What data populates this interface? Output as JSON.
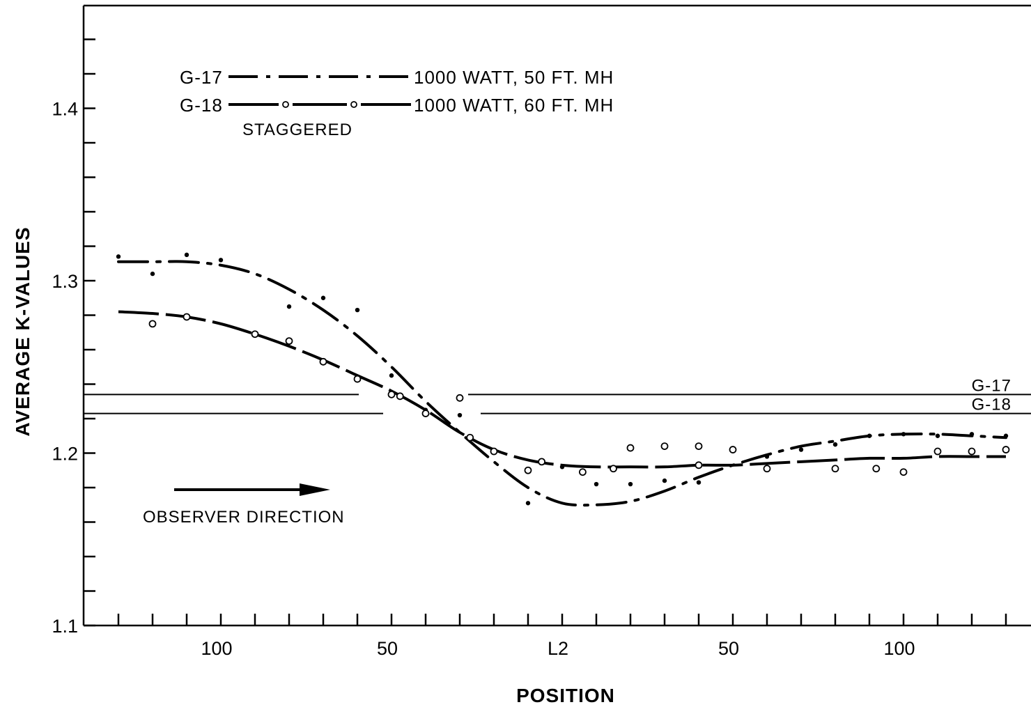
{
  "chart_data": {
    "type": "line",
    "xlabel": "POSITION",
    "ylabel": "AVERAGE  K-VALUES",
    "ylim": [
      1.1,
      1.45
    ],
    "y_ticks": [
      "1.1",
      "1.2",
      "1.3",
      "1.4"
    ],
    "x_tick_labels": [
      {
        "index": 3,
        "label": "100"
      },
      {
        "index": 8,
        "label": "50"
      },
      {
        "index": 13,
        "label": "L2"
      },
      {
        "index": 18,
        "label": "50"
      },
      {
        "index": 23,
        "label": "100"
      }
    ],
    "x_tick_count": 28,
    "grid": false,
    "legend": {
      "entries": [
        {
          "name": "G-17",
          "description": "1000  WATT,  50  FT.  MH"
        },
        {
          "name": "G-18",
          "description": "1000  WATT,  60  FT.  MH"
        }
      ],
      "note": "STAGGERED"
    },
    "annotations": {
      "observer": "OBSERVER  DIRECTION"
    },
    "reference_lines": [
      {
        "name": "G-17",
        "value": 1.234
      },
      {
        "name": "G-18",
        "value": 1.223
      }
    ],
    "series": [
      {
        "name": "G-17",
        "style": "dash-dot",
        "curve_x": [
          0,
          1,
          2,
          3,
          4,
          5,
          6,
          7,
          8,
          9,
          10,
          11,
          12,
          13,
          14,
          15,
          16,
          17,
          18,
          19,
          20,
          21,
          22,
          23,
          24,
          25,
          26
        ],
        "curve_y": [
          1.311,
          1.311,
          1.311,
          1.309,
          1.304,
          1.295,
          1.283,
          1.268,
          1.25,
          1.23,
          1.212,
          1.195,
          1.18,
          1.171,
          1.17,
          1.172,
          1.178,
          1.186,
          1.193,
          1.199,
          1.204,
          1.207,
          1.21,
          1.211,
          1.211,
          1.21,
          1.209
        ],
        "points_x": [
          0,
          1,
          2,
          3,
          5,
          6,
          7,
          8,
          9,
          10,
          12,
          13,
          14,
          15,
          16,
          17,
          19,
          20,
          21,
          22,
          23,
          24,
          25,
          26
        ],
        "points_y": [
          1.314,
          1.304,
          1.315,
          1.312,
          1.285,
          1.29,
          1.283,
          1.245,
          1.225,
          1.222,
          1.171,
          1.192,
          1.182,
          1.182,
          1.184,
          1.183,
          1.198,
          1.202,
          1.205,
          1.21,
          1.211,
          1.21,
          1.211,
          1.21
        ]
      },
      {
        "name": "G-18",
        "style": "long-dash-circle",
        "curve_x": [
          0,
          1,
          2,
          3,
          4,
          5,
          6,
          7,
          8,
          9,
          10,
          11,
          12,
          13,
          14,
          15,
          16,
          17,
          18,
          19,
          20,
          21,
          22,
          23,
          24,
          25,
          26
        ],
        "curve_y": [
          1.282,
          1.281,
          1.279,
          1.275,
          1.269,
          1.262,
          1.254,
          1.245,
          1.236,
          1.225,
          1.212,
          1.202,
          1.196,
          1.193,
          1.192,
          1.192,
          1.192,
          1.193,
          1.193,
          1.194,
          1.195,
          1.196,
          1.197,
          1.197,
          1.198,
          1.198,
          1.198
        ],
        "points_x": [
          1,
          2,
          4,
          5,
          6,
          7,
          8,
          8.25,
          9,
          10,
          10.3,
          11,
          12,
          12.4,
          13.6,
          14.5,
          15,
          16,
          17,
          17,
          18,
          19,
          21,
          22.2,
          23,
          24,
          25,
          26
        ],
        "points_y": [
          1.275,
          1.279,
          1.269,
          1.265,
          1.253,
          1.243,
          1.234,
          1.233,
          1.223,
          1.232,
          1.209,
          1.201,
          1.19,
          1.195,
          1.189,
          1.191,
          1.203,
          1.204,
          1.193,
          1.204,
          1.202,
          1.191,
          1.191,
          1.191,
          1.189,
          1.201,
          1.201,
          1.202
        ]
      }
    ]
  }
}
